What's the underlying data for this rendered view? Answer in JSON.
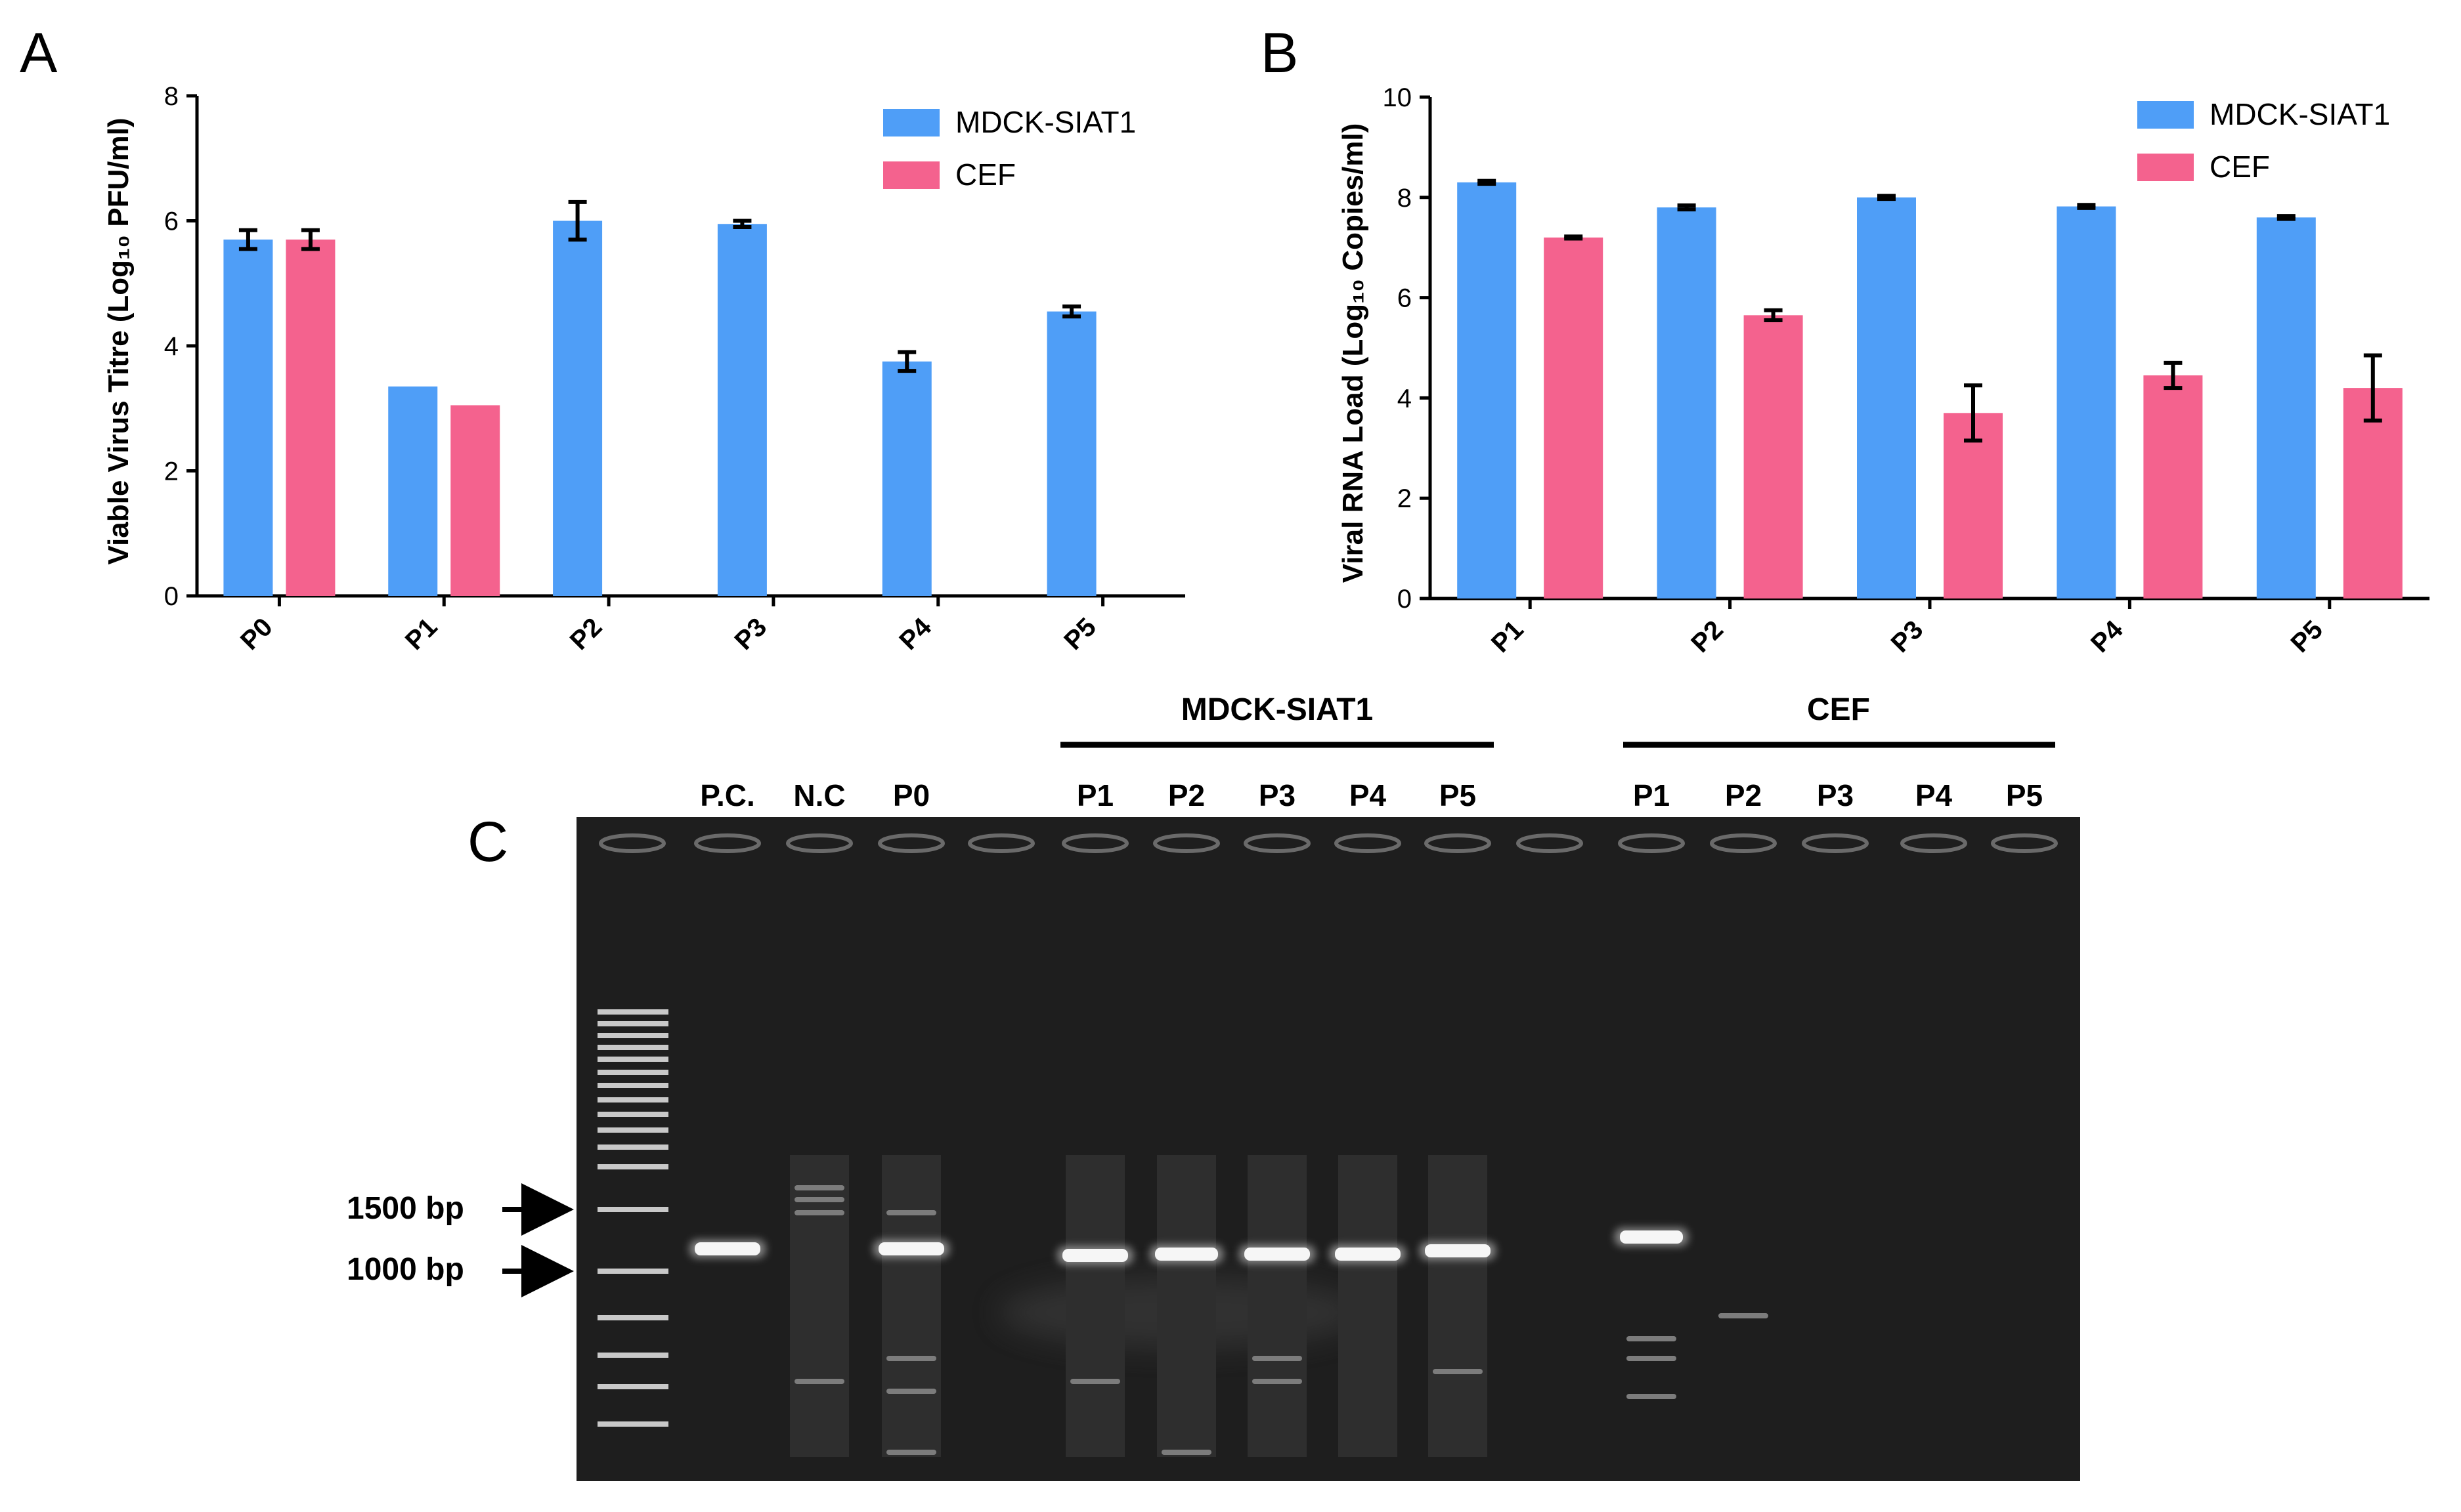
{
  "colors": {
    "mdck": "#4f9ef7",
    "cef": "#f4628e",
    "gel_bg": "#1e1e1e",
    "band": "#f6f6f6"
  },
  "chart_data": [
    {
      "panel_label": "A",
      "type": "bar",
      "categories": [
        "P0",
        "P1",
        "P2",
        "P3",
        "P4",
        "P5"
      ],
      "ylabel": "Viable Virus Titre (Log₁₀ PFU/ml)",
      "ylim": [
        0,
        8
      ],
      "yticks": [
        "0",
        "2",
        "4",
        "6",
        "8"
      ],
      "series": [
        {
          "name": "MDCK-SIAT1",
          "values": [
            5.7,
            3.35,
            6.0,
            5.95,
            3.75,
            4.55
          ],
          "errors": [
            0.15,
            0,
            0.3,
            0.05,
            0.15,
            0.08
          ]
        },
        {
          "name": "CEF",
          "values": [
            5.7,
            3.05,
            0,
            0,
            0,
            0
          ],
          "errors": [
            0.15,
            0,
            0,
            0,
            0,
            0
          ]
        }
      ],
      "legend_position": "top-right",
      "grid": false
    },
    {
      "panel_label": "B",
      "type": "bar",
      "categories": [
        "P1",
        "P2",
        "P3",
        "P4",
        "P5"
      ],
      "ylabel": "Viral RNA Load (Log₁₀ Copies/ml)",
      "ylim": [
        0,
        10
      ],
      "yticks": [
        "0",
        "2",
        "4",
        "6",
        "8",
        "10"
      ],
      "series": [
        {
          "name": "MDCK-SIAT1",
          "values": [
            8.3,
            7.8,
            8.0,
            7.82,
            7.6
          ],
          "errors": [
            0.03,
            0.04,
            0.03,
            0.03,
            0.03
          ]
        },
        {
          "name": "CEF",
          "values": [
            7.2,
            5.65,
            3.7,
            4.45,
            4.2
          ],
          "errors": [
            0.02,
            0.1,
            0.55,
            0.25,
            0.65
          ]
        }
      ],
      "legend_position": "top-right",
      "grid": false
    }
  ],
  "gel": {
    "panel_label": "C",
    "group_labels": [
      "MDCK-SIAT1",
      "CEF"
    ],
    "lane_labels": [
      "P.C.",
      "N.C",
      "P0",
      "P1",
      "P2",
      "P3",
      "P4",
      "P5",
      "P1",
      "P2",
      "P3",
      "P4",
      "P5"
    ],
    "markers": [
      "1500 bp",
      "1000 bp"
    ]
  }
}
